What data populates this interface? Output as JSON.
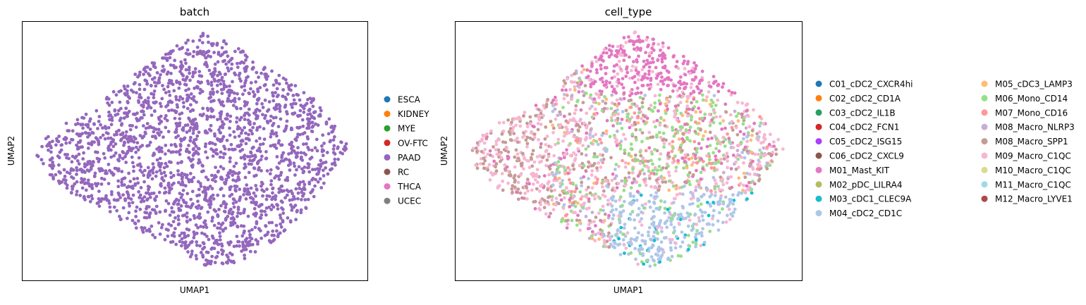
{
  "chart_data": [
    {
      "type": "scatter",
      "title": "batch",
      "xlabel": "UMAP1",
      "ylabel": "UMAP2",
      "grid": false,
      "ticks": "none",
      "legend_placement": "right",
      "legend": [
        {
          "label": "ESCA",
          "color": "#1f77b4"
        },
        {
          "label": "KIDNEY",
          "color": "#ff7f0e"
        },
        {
          "label": "MYE",
          "color": "#2ca02c"
        },
        {
          "label": "OV-FTC",
          "color": "#d62728"
        },
        {
          "label": "PAAD",
          "color": "#9467bd"
        },
        {
          "label": "RC",
          "color": "#8c564b"
        },
        {
          "label": "THCA",
          "color": "#e377c2"
        },
        {
          "label": "UCEC",
          "color": "#7f7f7f"
        }
      ],
      "point_color": "#9467bd"
    },
    {
      "type": "scatter",
      "title": "cell_type",
      "xlabel": "UMAP1",
      "ylabel": "UMAP2",
      "grid": false,
      "ticks": "none",
      "legend_placement": "right",
      "legend_columns": 2,
      "legend": [
        {
          "label": "C01_cDC2_CXCR4hi",
          "color": "#1f77b4"
        },
        {
          "label": "C02_cDC2_CD1A",
          "color": "#ff7f0e"
        },
        {
          "label": "C03_cDC2_IL1B",
          "color": "#279e68"
        },
        {
          "label": "C04_cDC2_FCN1",
          "color": "#d62728"
        },
        {
          "label": "C05_cDC2_ISG15",
          "color": "#aa40fc"
        },
        {
          "label": "C06_cDC2_CXCL9",
          "color": "#8c564b"
        },
        {
          "label": "M01_Mast_KIT",
          "color": "#e377c2"
        },
        {
          "label": "M02_pDC_LILRA4",
          "color": "#b5bd61"
        },
        {
          "label": "M03_cDC1_CLEC9A",
          "color": "#17becf"
        },
        {
          "label": "M04_cDC2_CD1C",
          "color": "#aec7e8"
        },
        {
          "label": "M05_cDC3_LAMP3",
          "color": "#ffbb78"
        },
        {
          "label": "M06_Mono_CD14",
          "color": "#98df8a"
        },
        {
          "label": "M07_Mono_CD16",
          "color": "#ff9896"
        },
        {
          "label": "M08_Macro_NLRP3",
          "color": "#c5b0d5"
        },
        {
          "label": "M08_Macro_SPP1",
          "color": "#c49c94"
        },
        {
          "label": "M09_Macro_C1QC",
          "color": "#f7b6d2"
        },
        {
          "label": "M10_Macro_C1QC",
          "color": "#dbdb8d"
        },
        {
          "label": "M11_Macro_C1QC",
          "color": "#9edae5"
        },
        {
          "label": "M12_Macro_LYVE1",
          "color": "#ad494a"
        }
      ]
    }
  ]
}
